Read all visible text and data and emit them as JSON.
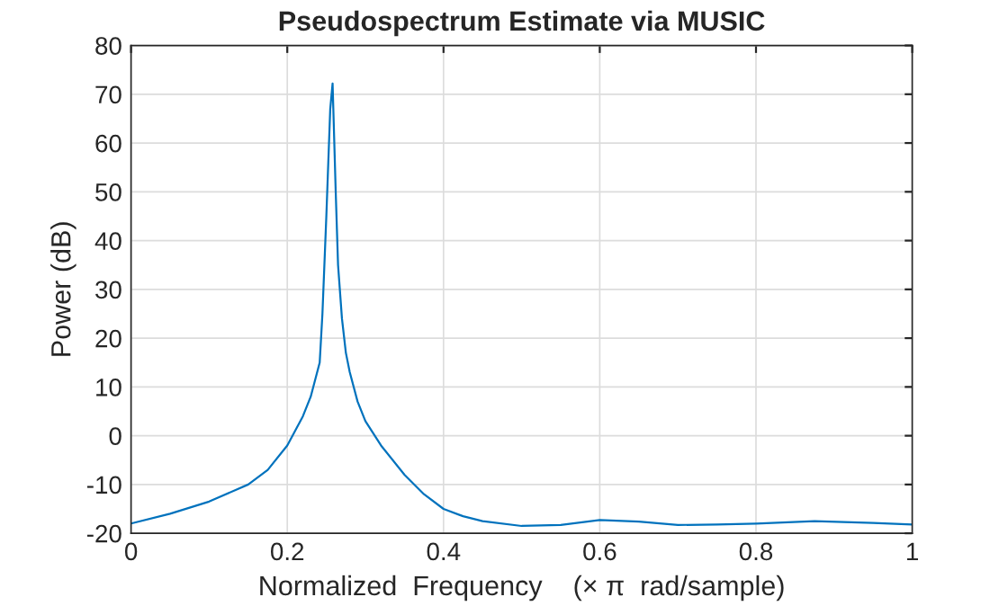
{
  "chart_data": {
    "type": "line",
    "title": "Pseudospectrum Estimate via MUSIC",
    "xlabel": "Normalized  Frequency    (× π  rad/sample)",
    "ylabel": "Power (dB)",
    "x": [
      0,
      0.05,
      0.1,
      0.15,
      0.175,
      0.2,
      0.22,
      0.23,
      0.2415,
      0.245,
      0.25,
      0.255,
      0.258,
      0.262,
      0.265,
      0.27,
      0.275,
      0.28,
      0.29,
      0.3,
      0.32,
      0.35,
      0.375,
      0.4,
      0.425,
      0.45,
      0.5,
      0.55,
      0.6,
      0.65,
      0.7,
      0.75,
      0.8,
      0.875,
      0.95,
      1
    ],
    "series": [
      {
        "color": "#0072bd",
        "values": [
          -18,
          -16,
          -13.5,
          -10,
          -7,
          -2,
          4,
          8,
          15,
          25,
          45,
          67,
          72.2,
          50,
          35,
          24,
          17,
          13,
          7,
          3,
          -2,
          -8,
          -12,
          -15,
          -16.5,
          -17.5,
          -18.5,
          -18.3,
          -17.3,
          -17.6,
          -18.3,
          -18.2,
          -18,
          -17.5,
          -17.9,
          -18.2
        ]
      }
    ],
    "xlim": [
      0,
      1
    ],
    "ylim": [
      -20,
      80
    ],
    "xticks": [
      0,
      0.2,
      0.4,
      0.6,
      0.8,
      1
    ],
    "yticks": [
      -20,
      -10,
      0,
      10,
      20,
      30,
      40,
      50,
      60,
      70,
      80
    ],
    "grid": true,
    "line_style": "solid"
  }
}
